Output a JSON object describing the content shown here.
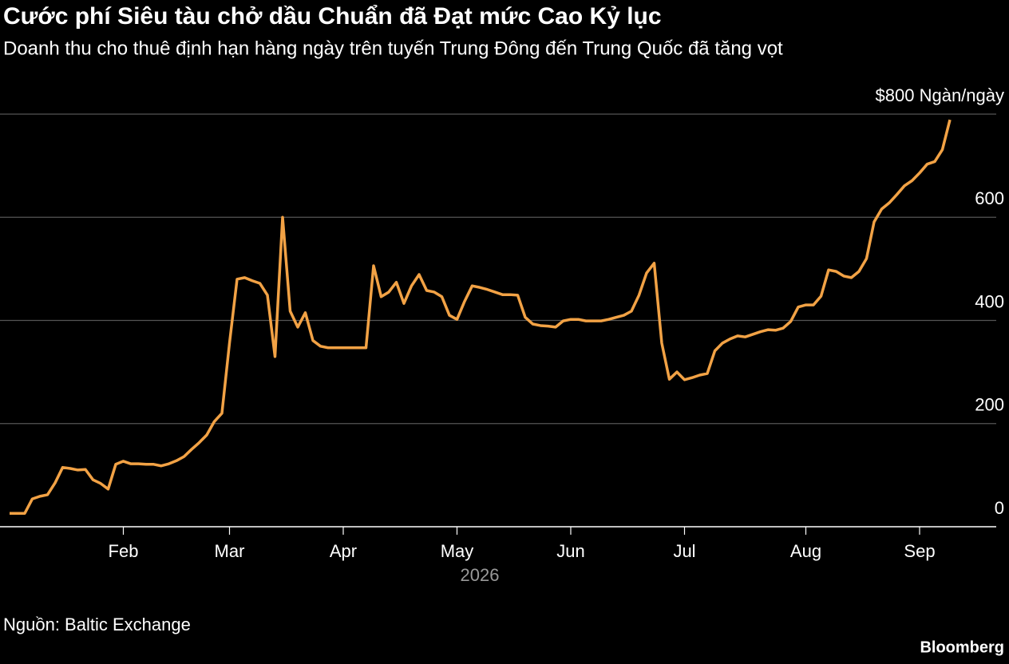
{
  "chart_data": {
    "type": "line",
    "title": "Cước phí Siêu tàu chở dầu Chuẩn đã Đạt mức Cao Kỷ lục",
    "subtitle": "Doanh thu cho thuê định hạn hàng ngày trên tuyến Trung Đông đến Trung Quốc đã tăng vọt",
    "x_title": "2026",
    "source": "Nguồn: Baltic Exchange",
    "brand": "Bloomberg",
    "categories": [
      null,
      null,
      null,
      null,
      null,
      null,
      null,
      null,
      null,
      null,
      null,
      null,
      null,
      null,
      null,
      "Feb",
      null,
      null,
      null,
      null,
      null,
      null,
      null,
      null,
      null,
      null,
      null,
      null,
      null,
      "Mar",
      null,
      null,
      null,
      null,
      null,
      null,
      null,
      null,
      null,
      null,
      null,
      null,
      null,
      null,
      "Apr",
      null,
      null,
      null,
      null,
      null,
      null,
      null,
      null,
      null,
      null,
      null,
      null,
      null,
      null,
      "May",
      null,
      null,
      null,
      null,
      null,
      null,
      null,
      null,
      null,
      null,
      null,
      null,
      null,
      null,
      "Jun",
      null,
      null,
      null,
      null,
      null,
      null,
      null,
      null,
      null,
      null,
      null,
      null,
      null,
      null,
      "Jul",
      null,
      null,
      null,
      null,
      null,
      null,
      null,
      null,
      null,
      null,
      null,
      null,
      null,
      null,
      null,
      "Aug",
      null,
      null,
      null,
      null,
      null,
      null,
      null,
      null,
      null,
      null,
      null,
      null,
      null,
      null,
      "Sep",
      null,
      null,
      null,
      null
    ],
    "series": [
      {
        "color": "#f2a245",
        "values": [
          26,
          26,
          26,
          54,
          59,
          62,
          85,
          115,
          113,
          110,
          111,
          91,
          84,
          73,
          121,
          127,
          122,
          122,
          121,
          121,
          118,
          122,
          128,
          136,
          150,
          163,
          178,
          204,
          220,
          356,
          480,
          483,
          477,
          472,
          449,
          330,
          600,
          418,
          387,
          415,
          361,
          350,
          347,
          347,
          347,
          347,
          347,
          347,
          506,
          446,
          455,
          474,
          433,
          467,
          489,
          458,
          455,
          446,
          410,
          402,
          437,
          467,
          464,
          460,
          455,
          450,
          450,
          449,
          406,
          393,
          390,
          389,
          387,
          399,
          402,
          402,
          399,
          399,
          399,
          402,
          406,
          410,
          418,
          449,
          492,
          511,
          356,
          286,
          300,
          285,
          289,
          294,
          297,
          341,
          356,
          364,
          370,
          368,
          373,
          378,
          382,
          381,
          385,
          398,
          426,
          430,
          430,
          447,
          498,
          495,
          486,
          483,
          495,
          520,
          591,
          616,
          628,
          644,
          661,
          671,
          686,
          703,
          708,
          731,
          789
        ]
      }
    ],
    "ylim": [
      0,
      800
    ],
    "yticks": [
      0,
      200,
      400,
      600,
      {
        "value": 800,
        "label": "$800 Ngàn/ngày"
      }
    ],
    "grid": true
  }
}
